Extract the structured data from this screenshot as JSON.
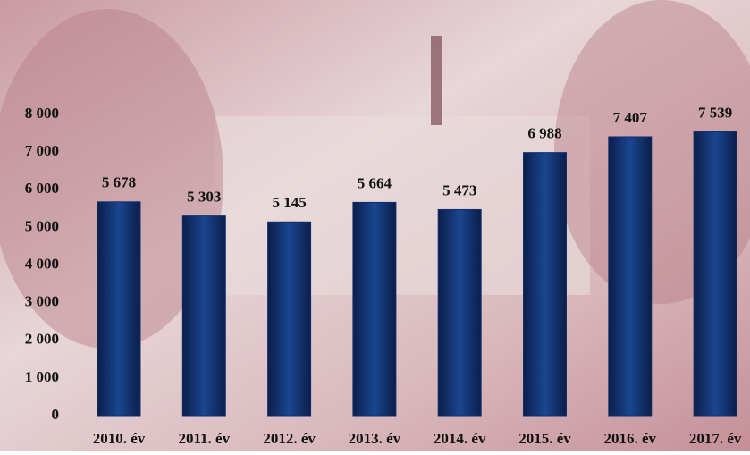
{
  "chart_data": {
    "type": "bar",
    "categories": [
      "2010. év",
      "2011. év",
      "2012. év",
      "2013. év",
      "2014. év",
      "2015. év",
      "2016. év",
      "2017. év"
    ],
    "values": [
      5678,
      5303,
      5145,
      5664,
      5473,
      6988,
      7407,
      7539
    ],
    "value_labels": [
      "5 678",
      "5 303",
      "5 145",
      "5 664",
      "5 473",
      "6 988",
      "7 407",
      "7 539"
    ],
    "color": "#12306e",
    "ylim": [
      0,
      8000
    ],
    "yticks": [
      0,
      {
        "value": 1000,
        "label": "1 000"
      },
      {
        "value": 2000,
        "label": "2 000"
      },
      {
        "value": 3000,
        "label": "3 000"
      },
      {
        "value": 4000,
        "label": "4 000"
      },
      {
        "value": 5000,
        "label": "5 000"
      },
      {
        "value": 6000,
        "label": "6 000"
      },
      {
        "value": 7000,
        "label": "7 000"
      },
      {
        "value": 8000,
        "label": "8 000"
      }
    ]
  }
}
